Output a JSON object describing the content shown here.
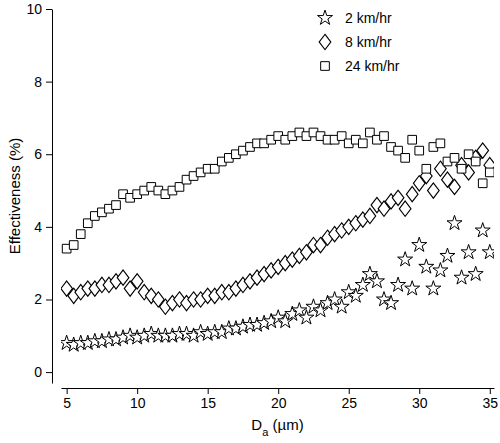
{
  "chart_data": {
    "type": "scatter",
    "x_label": "Da (µm)",
    "y_label": "Effectiveness (%)",
    "xlim": [
      4.6,
      35.3
    ],
    "ylim": [
      -0.3,
      10
    ],
    "xticks": [
      5,
      10,
      15,
      20,
      25,
      30,
      35
    ],
    "yticks": [
      0,
      2,
      4,
      6,
      8,
      10
    ],
    "grid": false,
    "legend": "top-right",
    "x": [
      5,
      5.5,
      6,
      6.5,
      7,
      7.5,
      8,
      8.5,
      9,
      9.5,
      10,
      10.5,
      11,
      11.5,
      12,
      12.5,
      13,
      13.5,
      14,
      14.5,
      15,
      15.5,
      16,
      16.5,
      17,
      17.5,
      18,
      18.5,
      19,
      19.5,
      20,
      20.5,
      21,
      21.5,
      22,
      22.5,
      23,
      23.5,
      24,
      24.5,
      25,
      25.5,
      26,
      26.5,
      27,
      27.5,
      28,
      28.5,
      29,
      29.5,
      30,
      30.5,
      31,
      31.5,
      32,
      32.5,
      33,
      33.5,
      34,
      34.5,
      35
    ],
    "series": [
      {
        "name": "2 km/hr",
        "color": "#000000",
        "marker": "star",
        "values": [
          0.8,
          0.75,
          0.8,
          0.8,
          0.85,
          0.85,
          0.9,
          0.9,
          0.95,
          1.0,
          0.95,
          1.0,
          1.05,
          1.0,
          1.0,
          1.0,
          1.05,
          1.05,
          1.0,
          1.1,
          1.05,
          1.1,
          1.1,
          1.2,
          1.2,
          1.25,
          1.3,
          1.3,
          1.35,
          1.4,
          1.5,
          1.4,
          1.6,
          1.7,
          1.5,
          1.8,
          1.7,
          1.9,
          2.0,
          1.8,
          2.2,
          2.1,
          2.4,
          2.7,
          2.5,
          2.0,
          1.9,
          2.4,
          3.1,
          2.3,
          3.5,
          2.9,
          2.3,
          2.8,
          3.2,
          4.1,
          2.6,
          3.3,
          2.7,
          3.9,
          3.3
        ]
      },
      {
        "name": "8 km/hr",
        "color": "#000000",
        "marker": "diamond",
        "values": [
          2.3,
          2.1,
          2.2,
          2.3,
          2.3,
          2.4,
          2.4,
          2.5,
          2.6,
          2.3,
          2.5,
          2.2,
          2.1,
          2.0,
          1.8,
          1.9,
          2.0,
          1.9,
          2.0,
          2.0,
          2.1,
          2.1,
          2.2,
          2.2,
          2.3,
          2.4,
          2.5,
          2.6,
          2.7,
          2.8,
          2.9,
          3.0,
          3.1,
          3.2,
          3.3,
          3.5,
          3.5,
          3.7,
          3.8,
          3.9,
          4.0,
          4.1,
          4.2,
          4.3,
          4.6,
          4.5,
          4.7,
          4.8,
          4.5,
          4.9,
          5.2,
          5.4,
          5.0,
          5.6,
          5.3,
          5.1,
          5.7,
          5.5,
          5.9,
          6.1,
          5.7
        ]
      },
      {
        "name": "24 km/hr",
        "color": "#000000",
        "marker": "square",
        "values": [
          3.4,
          3.5,
          3.8,
          4.1,
          4.3,
          4.4,
          4.5,
          4.6,
          4.9,
          4.8,
          4.9,
          5.0,
          5.1,
          5.0,
          4.9,
          5.0,
          5.1,
          5.3,
          5.4,
          5.5,
          5.6,
          5.6,
          5.8,
          5.9,
          6.0,
          6.1,
          6.2,
          6.3,
          6.3,
          6.4,
          6.5,
          6.4,
          6.5,
          6.6,
          6.5,
          6.6,
          6.5,
          6.4,
          6.4,
          6.5,
          6.3,
          6.4,
          6.3,
          6.6,
          6.4,
          6.5,
          6.2,
          6.1,
          5.9,
          6.4,
          6.1,
          5.6,
          6.2,
          6.3,
          5.8,
          5.9,
          5.6,
          6.0,
          5.8,
          5.2,
          5.5
        ]
      }
    ]
  }
}
